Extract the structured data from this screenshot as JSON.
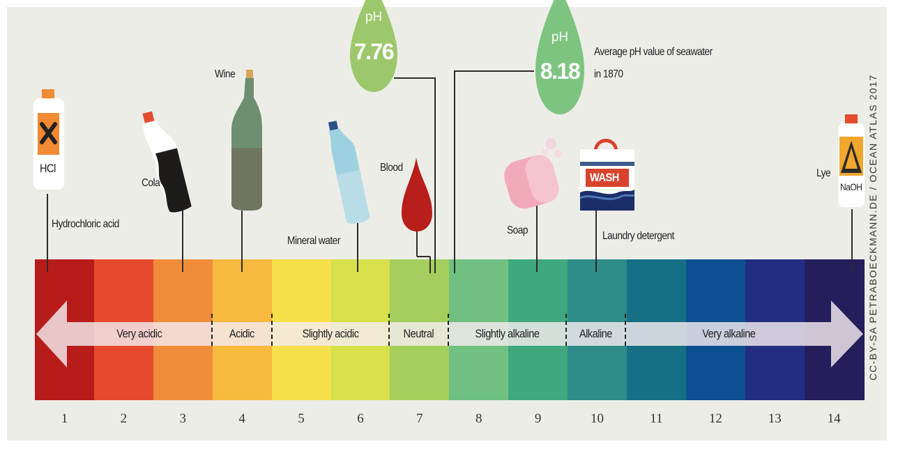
{
  "scale": {
    "values": [
      "1",
      "2",
      "3",
      "4",
      "5",
      "6",
      "7",
      "8",
      "9",
      "10",
      "11",
      "12",
      "13",
      "14"
    ],
    "colors": [
      "#b71c1a",
      "#e54a2e",
      "#f08d3a",
      "#f7b93e",
      "#f6e04b",
      "#d8e04c",
      "#a5cf5c",
      "#6fc081",
      "#3fa97d",
      "#2e8c89",
      "#156f85",
      "#0c4f92",
      "#232e82",
      "#251e5c"
    ]
  },
  "zones": {
    "very_acidic": "Very acidic",
    "acidic": "Acidic",
    "slightly_acidic": "Slightly acidic",
    "neutral": "Neutral",
    "slightly_alkaline": "Slightly alkaline",
    "alkaline": "Alkaline",
    "very_alkaline": "Very alkaline"
  },
  "substances": {
    "hcl": {
      "name": "Hydrochloric acid",
      "bottle_label": "HCl",
      "ph": 1
    },
    "cola": {
      "name": "Cola",
      "ph": 3
    },
    "wine": {
      "name": "Wine",
      "ph": 4
    },
    "mineral_water": {
      "name": "Mineral water",
      "ph": 6
    },
    "blood": {
      "name": "Blood",
      "ph": 7.4
    },
    "soap": {
      "name": "Soap",
      "ph": 9
    },
    "laundry": {
      "name": "Laundry detergent",
      "box_label": "WASH",
      "ph": 10
    },
    "lye": {
      "name": "Lye",
      "bottle_label": "NaOH",
      "ph": 14
    }
  },
  "seawater": {
    "current": {
      "unit": "pH",
      "value": "7.76"
    },
    "historic": {
      "unit": "pH",
      "value": "8.18",
      "caption_line1": "Average pH value of seawater",
      "caption_line2": "in 1870"
    }
  },
  "credit": "CC-BY-SA PETRABOECKMANN.DE / OCEAN ATLAS 2017",
  "colors": {
    "drop_7_76": "#9cc86b",
    "drop_8_18": "#7cc480",
    "background": "#edede8",
    "arrow": "#f4ecef"
  }
}
